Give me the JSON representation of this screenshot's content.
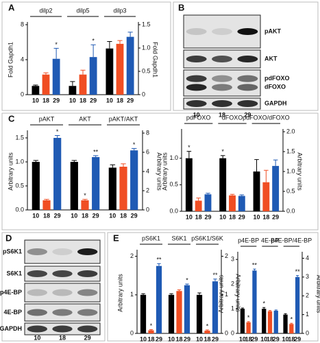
{
  "chart_data": [
    {
      "type": "bar",
      "panel": "A",
      "ylabel": "Fold Gapdh1",
      "y2label": "Fold Gapdh1",
      "ylim": [
        0,
        8
      ],
      "yticks": [
        0,
        4,
        8
      ],
      "y2lim": [
        0,
        1.5
      ],
      "y2ticks": [
        0,
        0.5,
        {
          "value": 1,
          "label": "1.0"
        },
        1.5
      ],
      "bar_labels": [
        "10",
        "18",
        "29"
      ],
      "colors": [
        "#000000",
        "#f04e23",
        "#1f5ab4"
      ],
      "groups": [
        {
          "name": "dilp2",
          "values": [
            1.0,
            2.3,
            4.1
          ],
          "errors": [
            0.1,
            0.2,
            1.2
          ],
          "annotations": [
            {
              "bar": 2,
              "text": "*"
            }
          ]
        },
        {
          "name": "dilp5",
          "values": [
            1.0,
            2.3,
            4.3
          ],
          "errors": [
            0.5,
            0.5,
            1.4
          ],
          "annotations": [
            {
              "bar": 2,
              "text": "*"
            }
          ]
        },
        {
          "name": "dilp3",
          "axis": "y2",
          "values": [
            0.99,
            1.09,
            1.24
          ],
          "errors": [
            0.15,
            0.07,
            0.1
          ]
        }
      ]
    },
    {
      "type": "bar",
      "panel": "C",
      "ylabel": "Arbitrary units",
      "y2label": "Arbitrary units",
      "ylim": [
        0,
        1.6
      ],
      "yticks": [
        {
          "value": 0,
          "label": "0.0"
        },
        0.5,
        {
          "value": 1,
          "label": "1.0"
        },
        1.5
      ],
      "y2lim": [
        0,
        8
      ],
      "y2ticks": [
        0,
        2,
        4,
        6,
        8
      ],
      "bar_labels": [
        "10",
        "18",
        "29"
      ],
      "colors": [
        "#000000",
        "#f04e23",
        "#1f5ab4"
      ],
      "groups": [
        {
          "name": "pAKT",
          "values": [
            1.0,
            0.2,
            1.5
          ],
          "errors": [
            0.03,
            0.02,
            0.05
          ],
          "annotations": [
            {
              "bar": 2,
              "text": "*"
            }
          ]
        },
        {
          "name": "AKT",
          "values": [
            1.0,
            0.2,
            1.1
          ],
          "errors": [
            0.03,
            0.02,
            0.03
          ],
          "annotations": [
            {
              "bar": 1,
              "text": "*"
            },
            {
              "bar": 2,
              "text": "**"
            }
          ]
        },
        {
          "name": "pAKT/AKT",
          "axis": "y2",
          "values": [
            4.4,
            4.5,
            6.2
          ],
          "errors": [
            0.3,
            0.3,
            0.2
          ],
          "annotations": [
            {
              "bar": 2,
              "text": "*"
            }
          ]
        }
      ]
    },
    {
      "type": "bar",
      "ylabel": "Arbitrary units",
      "y2label": "Arbitrary units",
      "ylim": [
        0,
        1.5
      ],
      "yticks": [
        {
          "value": 0,
          "label": "0.0"
        },
        0.5,
        {
          "value": 1,
          "label": "1.0"
        }
      ],
      "y2lim": [
        0,
        2
      ],
      "y2ticks": [
        {
          "value": 0,
          "label": "0.0"
        },
        0.5,
        {
          "value": 1,
          "label": "1.0"
        },
        1.5,
        {
          "value": 2,
          "label": "2.0"
        }
      ],
      "bar_labels": [
        "10",
        "18",
        "29"
      ],
      "colors": [
        "#000000",
        "#f04e23",
        "#1f5ab4"
      ],
      "groups": [
        {
          "name": "pdFOXO",
          "values": [
            1.0,
            0.2,
            0.32
          ],
          "errors": [
            0.13,
            0.05,
            0.02
          ],
          "annotations": [
            {
              "bar": 0,
              "text": "*"
            }
          ]
        },
        {
          "name": "dFOXO",
          "values": [
            1.0,
            0.3,
            0.29
          ],
          "errors": [
            0.05,
            0.02,
            0.02
          ],
          "annotations": [
            {
              "bar": 0,
              "text": "*"
            }
          ]
        },
        {
          "name": "pdFOXO/dFOXO",
          "axis": "y2",
          "values": [
            1.0,
            0.73,
            1.14
          ],
          "errors": [
            0.3,
            0.3,
            0.15
          ]
        }
      ]
    },
    {
      "type": "bar",
      "panel": "E",
      "ylabel": "Arbitrary units",
      "y2label": "Arbitrary units",
      "ylim": [
        0,
        2.1
      ],
      "yticks": [
        0,
        1,
        2
      ],
      "y2lim": [
        0,
        2.1
      ],
      "y2ticks": [
        0,
        1,
        2
      ],
      "bar_labels": [
        "10",
        "18",
        "29"
      ],
      "colors": [
        "#000000",
        "#f04e23",
        "#1f5ab4"
      ],
      "groups": [
        {
          "name": "pS6K1",
          "values": [
            1.0,
            0.08,
            1.75
          ],
          "errors": [
            0.03,
            0.02,
            0.06
          ],
          "annotations": [
            {
              "bar": 1,
              "text": "*"
            },
            {
              "bar": 2,
              "text": "**"
            }
          ]
        },
        {
          "name": "S6K1",
          "values": [
            1.0,
            1.1,
            1.25
          ],
          "errors": [
            0.03,
            0.03,
            0.03
          ],
          "annotations": [
            {
              "bar": 2,
              "text": "*"
            }
          ]
        },
        {
          "name": "pS6K1/S6K",
          "axis": "y2",
          "values": [
            1.0,
            0.07,
            1.35
          ],
          "errors": [
            0.05,
            0.02,
            0.06
          ],
          "annotations": [
            {
              "bar": 1,
              "text": "*"
            },
            {
              "bar": 2,
              "text": "**"
            }
          ]
        }
      ]
    },
    {
      "type": "bar",
      "ylabel": "Arbitrary units",
      "y2label": "Arbitrary units",
      "ylim": [
        0,
        3.2
      ],
      "yticks": [
        0,
        1,
        2,
        3
      ],
      "y2lim": [
        0,
        4.2
      ],
      "y2ticks": [
        0,
        1,
        2,
        3,
        4
      ],
      "bar_labels": [
        "10",
        "18",
        "29"
      ],
      "colors": [
        "#000000",
        "#f04e23",
        "#1f5ab4"
      ],
      "groups": [
        {
          "name": "p4E-BP",
          "values": [
            1.0,
            0.45,
            2.55
          ],
          "errors": [
            0.03,
            0.03,
            0.06
          ],
          "annotations": [
            {
              "bar": 1,
              "text": "*"
            },
            {
              "bar": 2,
              "text": "**"
            }
          ]
        },
        {
          "name": "4E-BP",
          "values": [
            1.0,
            0.9,
            0.92
          ],
          "errors": [
            0.05,
            0.03,
            0.03
          ],
          "annotations": [
            {
              "bar": 0,
              "text": "*"
            }
          ]
        },
        {
          "name": "p4E-BP/4E-BP",
          "axis": "y2",
          "values": [
            1.0,
            0.5,
            3.0
          ],
          "errors": [
            0.05,
            0.04,
            0.08
          ],
          "annotations": [
            {
              "bar": 1,
              "text": "*"
            },
            {
              "bar": 2,
              "text": "**"
            }
          ]
        }
      ]
    }
  ],
  "blots": [
    {
      "panel": "B",
      "lanes": [
        "10",
        "18",
        "29"
      ],
      "rows": [
        [
          "pAKT"
        ],
        [
          "AKT"
        ],
        [
          "pdFOXO",
          "dFOXO"
        ],
        [
          "GAPDH"
        ]
      ]
    },
    {
      "panel": "D",
      "lanes": [
        "10",
        "18",
        "29"
      ],
      "rows": [
        [
          "pS6K1"
        ],
        [
          "S6K1"
        ],
        [
          "p4E-BP"
        ],
        [
          "4E-BP"
        ],
        [
          "GAPDH"
        ]
      ]
    }
  ]
}
